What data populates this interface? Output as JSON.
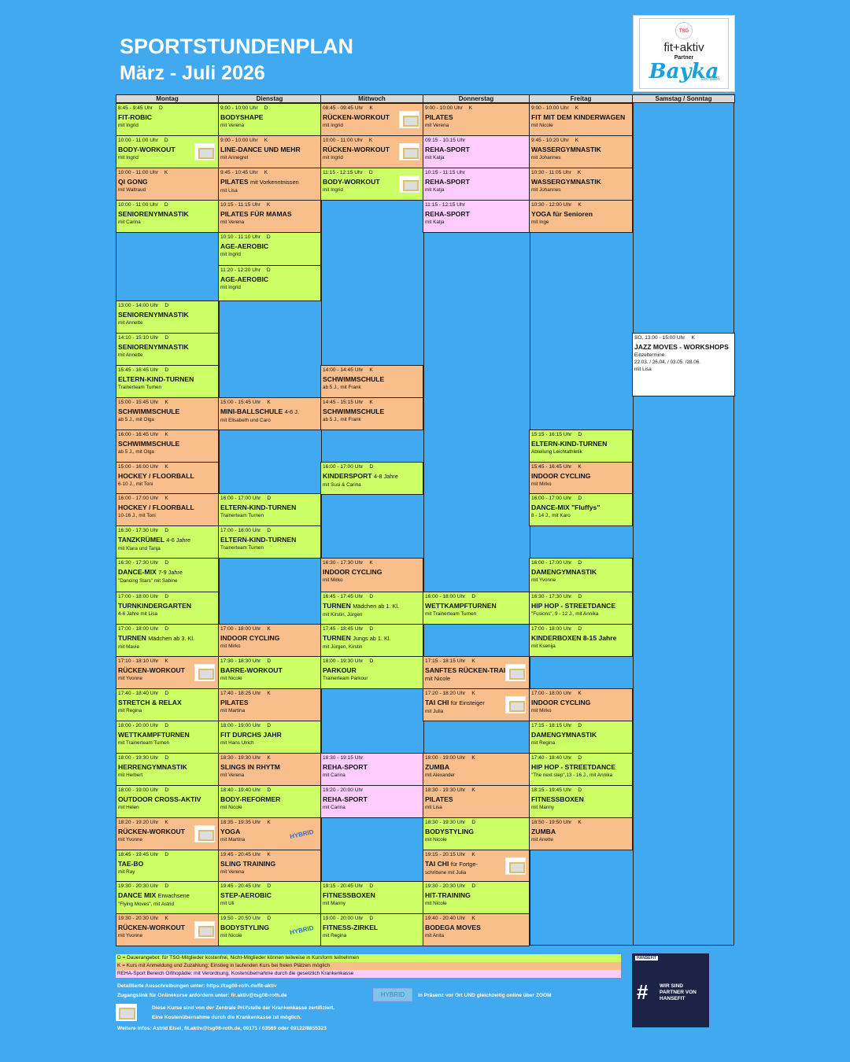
{
  "header": {
    "title": "SPORTSTUNDENPLAN",
    "subtitle": "März - Juli 2026"
  },
  "logo": {
    "brand": "fit+aktiv",
    "partner": "Partner",
    "sponsor": "Bayka",
    "since": "seit 1885"
  },
  "colors": {
    "background": "#41a9ef",
    "dauerangebot": "#ccff66",
    "kurs": "#f8be8c",
    "reha": "#ffccff"
  },
  "days": [
    {
      "label": "Montag",
      "cells": [
        {
          "time": "8:45 - 9:45 Uhr",
          "kind": "D",
          "title": "FIT-ROBIC",
          "extra": "",
          "sub": "mit Ingrid",
          "type": "D"
        },
        {
          "time": "10:00 - 11:00 Uhr",
          "kind": "D",
          "title": "BODY-WORKOUT",
          "extra": "",
          "sub": "mit Ingrid",
          "type": "D",
          "cert": true
        },
        {
          "time": "10:00 - 11:00 Uhr",
          "kind": "K",
          "title": "QI GONG",
          "extra": "",
          "sub": "mit Waltraud",
          "type": "K"
        },
        {
          "time": "10:00 - 11:00 Uhr",
          "kind": "D",
          "title": "SENIORENYMNASTIK",
          "extra": "",
          "sub": "mit Carina",
          "type": "D"
        },
        {
          "time": "13:00 - 14:00 Uhr",
          "kind": "D",
          "title": "SENIORENYMNASTIK",
          "extra": "",
          "sub": "mit Annette",
          "type": "D"
        },
        {
          "time": "14:10 - 15:10 Uhr",
          "kind": "D",
          "title": "SENIORENYMNASTIK",
          "extra": "",
          "sub": "mit Annette",
          "type": "D"
        },
        {
          "time": "15:45 - 16:45 Uhr",
          "kind": "D",
          "title": "ELTERN-KIND-TURNEN",
          "extra": "",
          "sub": "Trainerteam Turnen",
          "type": "D"
        },
        {
          "time": "15:00 - 15:45 Uhr",
          "kind": "K",
          "title": "SCHWIMMSCHULE",
          "extra": "",
          "sub": "ab 5 J., mit Olga",
          "type": "K"
        },
        {
          "time": "16:00 - 16:45 Uhr",
          "kind": "K",
          "title": "SCHWIMMSCHULE",
          "extra": "",
          "sub": "ab 5 J., mit Olga",
          "type": "K"
        },
        {
          "time": "15:00 - 16:00 Uhr",
          "kind": "K",
          "title": "HOCKEY / FLOORBALL",
          "extra": "",
          "sub": "6-10 J., mit Toni",
          "type": "K"
        },
        {
          "time": "16:00 - 17:00 Uhr",
          "kind": "K",
          "title": "HOCKEY / FLOORBALL",
          "extra": "",
          "sub": "10-16 J., mit Toni",
          "type": "K"
        },
        {
          "time": "16:30 - 17:30 Uhr",
          "kind": "D",
          "title": "TANZKRÜMEL",
          "extra": "4-6 Jahre",
          "sub": "mit Klara und Tanja",
          "type": "D"
        },
        {
          "time": "16:30 - 17:30 Uhr",
          "kind": "D",
          "title": "DANCE-MIX",
          "extra": "7-9 Jahre",
          "sub": "\"Dancing Stars\" mit Sabine",
          "type": "D"
        },
        {
          "time": "17:00 - 18:00 Uhr",
          "kind": "D",
          "title": "TURNKINDERGARTEN",
          "extra": "",
          "sub": "4-6 Jahre mit Lisa",
          "type": "D"
        },
        {
          "time": "17:00 - 18:00 Uhr",
          "kind": "D",
          "title": "TURNEN",
          "extra": "Mädchen ab 3. Kl.",
          "sub": "mit Mavie",
          "type": "D"
        },
        {
          "time": "17:10 - 18:10 Uhr",
          "kind": "K",
          "title": "RÜCKEN-WORKOUT",
          "extra": "",
          "sub": "mit Yvonne",
          "type": "K",
          "cert": true
        },
        {
          "time": "17:40 - 18:40 Uhr",
          "kind": "D",
          "title": "STRETCH & RELAX",
          "extra": "",
          "sub": "mit Regina",
          "type": "D"
        },
        {
          "time": "18:00 - 20:00 Uhr",
          "kind": "D",
          "title": "WETTKAMPFTURNEN",
          "extra": "",
          "sub": "mit Trainerteam Turnen",
          "type": "D"
        },
        {
          "time": "18:00 - 19:30 Uhr",
          "kind": "D",
          "title": "HERRENGYMNASTIK",
          "extra": "",
          "sub": "mit Herbert",
          "type": "D"
        },
        {
          "time": "18:00 - 19:00 Uhr",
          "kind": "D",
          "title": "OUTDOOR CROSS-AKTIV",
          "extra": "",
          "sub": "mit Helen",
          "type": "D"
        },
        {
          "time": "18:20 - 19:20 Uhr",
          "kind": "K",
          "title": "RÜCKEN-WORKOUT",
          "extra": "",
          "sub": "mit Yvonne",
          "type": "K",
          "cert": true
        },
        {
          "time": "18:45 - 19:45 Uhr",
          "kind": "D",
          "title": "TAE-BO",
          "extra": "",
          "sub": "mit Ray",
          "type": "D"
        },
        {
          "time": "19:30 - 20:30 Uhr",
          "kind": "D",
          "title": "DANCE MIX",
          "extra": "Erwachsene",
          "sub": "\"Flying Moves\", mit Astrid",
          "type": "D"
        },
        {
          "time": "19:30 - 20:30 Uhr",
          "kind": "K",
          "title": "RÜCKEN-WORKOUT",
          "extra": "",
          "sub": "mit Yvonne",
          "type": "K",
          "cert": true
        }
      ]
    },
    {
      "label": "Dienstag",
      "cells": [
        {
          "time": "9:00 - 10:00 Uhr",
          "kind": "D",
          "title": "BODYSHAPE",
          "extra": "",
          "sub": "mit Verena",
          "type": "D"
        },
        {
          "time": "9:00 - 10:00 Uhr",
          "kind": "K",
          "title": "LINE-DANCE UND MEHR",
          "extra": "",
          "sub": "mit Annegret",
          "type": "K"
        },
        {
          "time": "9:45 - 10:45 Uhr",
          "kind": "K",
          "title": "PILATES",
          "extra": "mit Vorkenntnissen",
          "sub": "mit Lisa",
          "type": "K"
        },
        {
          "time": "10:15 - 11:15 Uhr",
          "kind": "K",
          "title": "PILATES FÜR MAMAS",
          "extra": "",
          "sub": "mit Verena",
          "type": "K"
        },
        {
          "time": "10:10 - 11:10 Uhr",
          "kind": "D",
          "title": "AGE-AEROBIC",
          "extra": "",
          "sub": "mit Ingrid",
          "type": "D"
        },
        {
          "time": "11:20 - 12:20 Uhr",
          "kind": "D",
          "title": "AGE-AEROBIC",
          "extra": "",
          "sub": "mit Ingrid",
          "type": "D"
        },
        {
          "time": "15:00 - 15:45 Uhr",
          "kind": "K",
          "title": "MINI-BALLSCHULE",
          "extra": "4-6 J.",
          "sub": "mit Elisabeth und Caro",
          "type": "K"
        },
        {
          "time": "16:00 - 17:00 Uhr",
          "kind": "D",
          "title": "ELTERN-KIND-TURNEN",
          "extra": "",
          "sub": "Trainerteam Turnen",
          "type": "D"
        },
        {
          "time": "17:00 - 18:00 Uhr",
          "kind": "D",
          "title": "ELTERN-KIND-TURNEN",
          "extra": "",
          "sub": "Trainerteam Turnen",
          "type": "D"
        },
        {
          "time": "17:00 - 18:00 Uhr",
          "kind": "K",
          "title": "INDOOR CYCLING",
          "extra": "",
          "sub": "mit Mirko",
          "type": "K"
        },
        {
          "time": "17:30 - 18:30 Uhr",
          "kind": "D",
          "title": "BARRE-WORKOUT",
          "extra": "",
          "sub": "mit Nicole",
          "type": "D"
        },
        {
          "time": "17:40 - 18:25 Uhr",
          "kind": "K",
          "title": "PILATES",
          "extra": "",
          "sub": "mit Martina",
          "type": "K"
        },
        {
          "time": "18:00 - 19:00 Uhr",
          "kind": "D",
          "title": "FIT DURCHS JAHR",
          "extra": "",
          "sub": "mit Hans Ulrich",
          "type": "D"
        },
        {
          "time": "18:30 - 19:30 Uhr",
          "kind": "K",
          "title": "SLINGS IN RHYTM",
          "extra": "",
          "sub": "mit Verena",
          "type": "K"
        },
        {
          "time": "18:40 - 19:40 Uhr",
          "kind": "D",
          "title": "BODY-REFORMER",
          "extra": "",
          "sub": "mit Nicole",
          "type": "D"
        },
        {
          "time": "18:35 - 19:35 Uhr",
          "kind": "K",
          "title": "YOGA",
          "extra": "",
          "sub": "mit Martina",
          "type": "K",
          "hybrid": "HYBRID"
        },
        {
          "time": "19:45 - 20:45 Uhr",
          "kind": "K",
          "title": "SLING TRAINING",
          "extra": "",
          "sub": "mit Verena",
          "type": "K"
        },
        {
          "time": "19:45 - 20:45 Uhr",
          "kind": "D",
          "title": "STEP-AEROBIC",
          "extra": "",
          "sub": "mit Uli",
          "type": "D"
        },
        {
          "time": "19:50 - 20:50 Uhr",
          "kind": "D",
          "title": "BODYSTYLING",
          "extra": "",
          "sub": "mit Nicole",
          "type": "D",
          "hybrid": "HYBRID"
        }
      ]
    },
    {
      "label": "Mittwoch",
      "cells": [
        {
          "time": "08:45 - 09:45 Uhr",
          "kind": "K",
          "title": "RÜCKEN-WORKOUT",
          "extra": "",
          "sub": "mit Ingrid",
          "type": "K",
          "cert": true
        },
        {
          "time": "10:00 - 11:00 Uhr",
          "kind": "K",
          "title": "RÜCKEN-WORKOUT",
          "extra": "",
          "sub": "mit Ingrid",
          "type": "K",
          "cert": true
        },
        {
          "time": "11:15 - 12:15 Uhr",
          "kind": "D",
          "title": "BODY-WORKOUT",
          "extra": "",
          "sub": "mit Ingrid",
          "type": "D",
          "cert": true
        },
        {
          "time": "14:00 - 14:45 Uhr",
          "kind": "K",
          "title": "SCHWIMMSCHULE",
          "extra": "",
          "sub": "ab 5 J., mit Frank",
          "type": "K"
        },
        {
          "time": "14:45 - 15:15 Uhr",
          "kind": "K",
          "title": "SCHWIMMSCHULE",
          "extra": "",
          "sub": "ab 5 J., mit Frank",
          "type": "K"
        },
        {
          "time": "16:00 - 17:00 Uhr",
          "kind": "D",
          "title": "KINDERSPORT",
          "extra": "4-8 Jahre",
          "sub": "mit Susi & Carina",
          "type": "D"
        },
        {
          "time": "16:30 - 17:30 Uhr",
          "kind": "K",
          "title": "INDOOR CYCLING",
          "extra": "",
          "sub": "mit Mirko",
          "type": "K"
        },
        {
          "time": "16:45 - 17:45 Uhr",
          "kind": "D",
          "title": "TURNEN",
          "extra": "Mädchen ab 1. Kl.",
          "sub": "mit Kirstin, Jürgen",
          "type": "D"
        },
        {
          "time": "17:45 - 18:45 Uhr",
          "kind": "D",
          "title": "TURNEN",
          "extra": "Jungs ab 1. Kl.",
          "sub": "mit Jürgen, Kirstin",
          "type": "D"
        },
        {
          "time": "18:00 - 19:30 Uhr",
          "kind": "D",
          "title": "PARKOUR",
          "extra": "",
          "sub": "Trainerteam Parkour",
          "type": "D"
        },
        {
          "time": "18:30 - 19:15 Uhr",
          "kind": "",
          "title": "REHA-SPORT",
          "extra": "",
          "sub": "mit Carina",
          "type": "R"
        },
        {
          "time": "19:20 - 20:00 Uhr",
          "kind": "",
          "title": "REHA-SPORT",
          "extra": "",
          "sub": "mit Carina",
          "type": "R"
        },
        {
          "time": "19:15 - 20:45 Uhr",
          "kind": "D",
          "title": "FITNESSBOXEN",
          "extra": "",
          "sub": "mit Manny",
          "type": "D"
        },
        {
          "time": "19:00 - 20:00 Uhr",
          "kind": "D",
          "title": "FITNESS-ZIRKEL",
          "extra": "",
          "sub": "mit Regina",
          "type": "D"
        }
      ]
    },
    {
      "label": "Donnerstag",
      "cells": [
        {
          "time": "9:00 - 10:00 Uhr",
          "kind": "K",
          "title": "PILATES",
          "extra": "",
          "sub": "mit Verena",
          "type": "K"
        },
        {
          "time": "09:15 - 10:15 Uhr",
          "kind": "",
          "title": "REHA-SPORT",
          "extra": "",
          "sub": "mit Katja",
          "type": "R"
        },
        {
          "time": "10:15 - 11:15 Uhr",
          "kind": "",
          "title": "REHA-SPORT",
          "extra": "",
          "sub": "mit Katja",
          "type": "R"
        },
        {
          "time": "11:15 - 12:15 Uhr",
          "kind": "",
          "title": "REHA-SPORT",
          "extra": "",
          "sub": "mit Katja",
          "type": "R"
        },
        {
          "time": "16:00 - 18:00 Uhr",
          "kind": "D",
          "title": "WETTKAMPFTURNEN",
          "extra": "",
          "sub": "mit Trainerteam Turnen",
          "type": "D"
        },
        {
          "time": "17:15 - 18:15 Uhr",
          "kind": "K",
          "title": "SANFTES RÜCKEN-TRAINING",
          "extra": "mit Nicole",
          "sub": "",
          "type": "K",
          "cert": true
        },
        {
          "time": "17:20 - 18:20 Uhr",
          "kind": "K",
          "title": "TAI CHI",
          "extra": "für Einsteiger",
          "sub": "mit Julia",
          "type": "K",
          "cert": true
        },
        {
          "time": "18:00 - 19:00 Uhr",
          "kind": "K",
          "title": "ZUMBA",
          "extra": "",
          "sub": "mit Alexander",
          "type": "K"
        },
        {
          "time": "18:30 - 19:30 Uhr",
          "kind": "K",
          "title": "PILATES",
          "extra": "",
          "sub": "mit Lisa",
          "type": "K"
        },
        {
          "time": "18:30 - 19:30 Uhr",
          "kind": "D",
          "title": "BODYSTYLING",
          "extra": "",
          "sub": "mit Nicole",
          "type": "D"
        },
        {
          "time": "19:15 - 20:15 Uhr",
          "kind": "K",
          "title": "TAI CHI",
          "extra": "für Fortge-",
          "sub": "schrittene mit Julia",
          "type": "K",
          "cert": true
        },
        {
          "time": "19:30 - 20:30 Uhr",
          "kind": "D",
          "title": "HIT-TRAINING",
          "extra": "",
          "sub": "mit Nicole",
          "type": "D"
        },
        {
          "time": "19:40 - 20:40 Uhr",
          "kind": "K",
          "title": "BODEGA MOVES",
          "extra": "",
          "sub": "mit Anita",
          "type": "K"
        }
      ]
    },
    {
      "label": "Freitag",
      "cells": [
        {
          "time": "9:00 - 10:00 Uhr",
          "kind": "K",
          "title": "FIT MIT DEM KINDERWAGEN",
          "extra": "",
          "sub": "mit Nicole",
          "type": "K"
        },
        {
          "time": "9:45 - 10:20 Uhr",
          "kind": "K",
          "title": "WASSERGYMNASTIK",
          "extra": "",
          "sub": "mit Johannes",
          "type": "K"
        },
        {
          "time": "10:30 - 11:05 Uhr",
          "kind": "K",
          "title": "WASSERGYMNASTIK",
          "extra": "",
          "sub": "mit Johannes",
          "type": "K"
        },
        {
          "time": "10:30 - 12:00 Uhr",
          "kind": "K",
          "title": "YOGA für Senioren",
          "extra": "",
          "sub": "mit Inge",
          "type": "K"
        },
        {
          "time": "15:15 - 16:15 Uhr",
          "kind": "D",
          "title": "ELTERN-KIND-TURNEN",
          "extra": "",
          "sub": "Abteilung Leichtathletik",
          "type": "D"
        },
        {
          "time": "15:45 - 16:45 Uhr",
          "kind": "K",
          "title": "INDOOR CYCLING",
          "extra": "",
          "sub": "mit Mirko",
          "type": "K"
        },
        {
          "time": "16:00 - 17:00 Uhr",
          "kind": "D",
          "title": "DANCE-MIX \"Fluffys\"",
          "extra": "",
          "sub": "8 - 14 J., mit Karo",
          "type": "D"
        },
        {
          "time": "16:00 - 17:00 Uhr",
          "kind": "D",
          "title": "DAMENGYMNASTIK",
          "extra": "",
          "sub": "mit Yvonne",
          "type": "D"
        },
        {
          "time": "16:30 - 17:30 Uhr",
          "kind": "D",
          "title": "HIP HOP - STREETDANCE",
          "extra": "",
          "sub": "\"Fusions\", 9 - 12 J., mit Annika",
          "type": "D"
        },
        {
          "time": "17:00 - 18:00 Uhr",
          "kind": "D",
          "title": "KINDERBOXEN 8-15 Jahre",
          "extra": "",
          "sub": "mit Ksenija",
          "type": "D"
        },
        {
          "time": "17:00 - 18:00 Uhr",
          "kind": "K",
          "title": "INDOOR CYCLING",
          "extra": "",
          "sub": "mit Mirko",
          "type": "K"
        },
        {
          "time": "17:15 - 18:15 Uhr",
          "kind": "D",
          "title": "DAMENGYMNASTIK",
          "extra": "",
          "sub": "mit Regina",
          "type": "D"
        },
        {
          "time": "17:40 - 18:40 Uhr",
          "kind": "D",
          "title": "HIP HOP - STREETDANCE",
          "extra": "",
          "sub": "\"The next step\",13 - 16 J., mit Annika",
          "type": "D"
        },
        {
          "time": "18:15 - 19:45 Uhr",
          "kind": "D",
          "title": "FITNESSBOXEN",
          "extra": "",
          "sub": "mit Manny",
          "type": "D"
        },
        {
          "time": "18:50 - 19:50 Uhr",
          "kind": "K",
          "title": "ZUMBA",
          "extra": "",
          "sub": "mit Anette",
          "type": "K"
        }
      ]
    },
    {
      "label": "Samstag / Sonntag",
      "cells": [
        {
          "time": "SO, 13:00 - 15:00 Uhr",
          "kind": "K",
          "title": "JAZZ MOVES - WORKSHOPS",
          "extra": "",
          "sub": "Einzeltermine:",
          "sub2": "22.03. / 26.04. / 03.05. /28.06.",
          "sub3": "mit Lisa",
          "type": "W"
        }
      ]
    }
  ],
  "legend": [
    {
      "text": "D = Dauerangebot: für TSG-Mitglieder kostenfrei, Nicht-Mitglieder können teilweise in Kursform teilnehmen",
      "type": "D"
    },
    {
      "text": "K = Kurs mit Anmeldung und Zuzahlung; Einstieg in laufenden Kurs bei freien Plätzen möglich",
      "type": "K"
    },
    {
      "text": "REHA-Sport Bereich Orthopädie: mit Verordnung, Kostenübernahme durch die gesetzlich Krankenkasse",
      "type": "R"
    }
  ],
  "footer": {
    "details": "Detaillierte Ausschreibungen unter: https://tsg08-roth.de/fit-aktiv",
    "online": "Zugangslink für Onlinekurse anfordern unter: fit.aktiv@tsg08-roth.de",
    "hybrid_label": "HYBRID",
    "hybrid_text": "in Präsenz vor Ort UND gleichzeitig online über ZOOM",
    "cert_line1": "Diese Kurse sind von der Zentrale Prüfstelle der Krankenkasse zertifiziert.",
    "cert_line2": "Eine Kostenübernahme durch die Krankenkasse ist möglich.",
    "contact": "Weitere Infos: Astrid Elsel, fit.aktiv@tsg08-roth.de, 09171 / 63569 oder 09122/8855323"
  },
  "hansefit": {
    "tag": "HANSEFIT",
    "line1": "WIR SIND",
    "line2": "PARTNER VON",
    "line3": "HANSEFIT"
  }
}
